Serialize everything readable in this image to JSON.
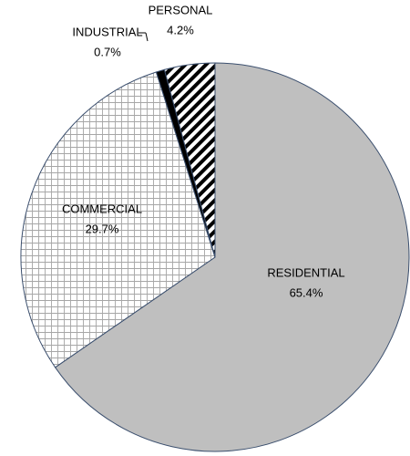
{
  "chart_data": {
    "type": "pie",
    "categories": [
      "RESIDENTIAL",
      "COMMERCIAL",
      "INDUSTRIAL",
      "PERSONAL"
    ],
    "values": [
      65.4,
      29.7,
      0.7,
      4.2
    ],
    "value_labels": [
      "65.4%",
      "29.7%",
      "0.7%",
      "4.2%"
    ],
    "colors": [
      "#bfbfbf",
      "#a6a6a6",
      "#000000",
      "#000000"
    ],
    "patterns": [
      "solid",
      "grid",
      "solid",
      "hatch"
    ]
  }
}
